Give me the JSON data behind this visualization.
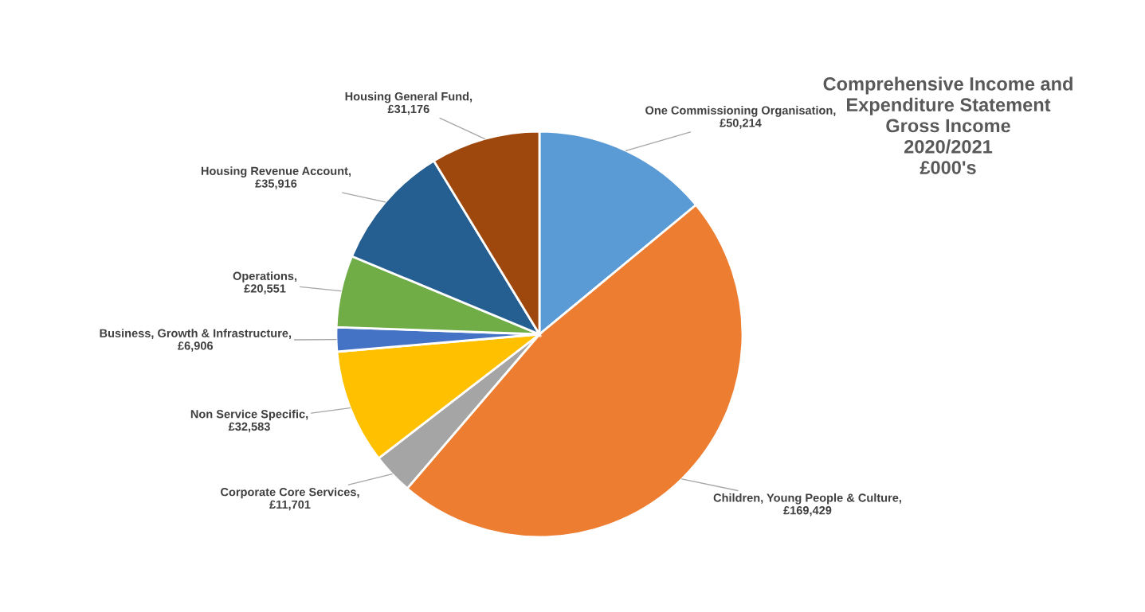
{
  "chart_data": {
    "type": "pie",
    "title": "Comprehensive Income and\nExpenditure Statement\nGross Income\n2020/2021\n£000's",
    "categories": [
      "One Commissioning Organisation, £50,214",
      "Children, Young People & Culture, £169,429",
      "Corporate Core Services, £11,701",
      "Non Service Specific, £32,583",
      "Business, Growth & Infrastructure, £6,906",
      "Operations, £20,551",
      "Housing Revenue Account, £35,916",
      "Housing General Fund, £31,176"
    ],
    "values": [
      50214,
      169429,
      11701,
      32583,
      6906,
      20551,
      35916,
      31176
    ],
    "colors": [
      "#5b9bd5",
      "#ed7d31",
      "#a5a5a5",
      "#ffc000",
      "#4472c4",
      "#70ad47",
      "#255e91",
      "#9e480e"
    ],
    "legend": false
  }
}
